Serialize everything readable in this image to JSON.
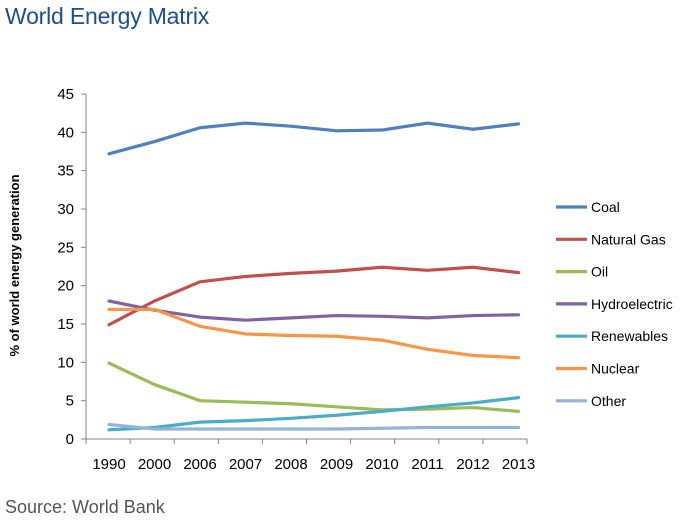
{
  "page": {
    "title": "World Energy Matrix",
    "source": "Source: World Bank"
  },
  "chart_data": {
    "type": "line",
    "title": "World Energy Matrix",
    "xlabel": "",
    "ylabel": "% of world energy generation",
    "ylim": [
      0,
      45
    ],
    "yticks": [
      0,
      5,
      10,
      15,
      20,
      25,
      30,
      35,
      40,
      45
    ],
    "grid": false,
    "legend_position": "right",
    "categories": [
      "1990",
      "2000",
      "2006",
      "2007",
      "2008",
      "2009",
      "2010",
      "2011",
      "2012",
      "2013"
    ],
    "series": [
      {
        "name": "Coal",
        "color": "#4f81bd",
        "values": [
          37.2,
          38.8,
          40.6,
          41.2,
          40.8,
          40.2,
          40.3,
          41.2,
          40.4,
          41.1
        ]
      },
      {
        "name": "Natural Gas",
        "color": "#c0504d",
        "values": [
          14.9,
          18.0,
          20.5,
          21.2,
          21.6,
          21.9,
          22.4,
          22.0,
          22.4,
          21.7
        ]
      },
      {
        "name": "Oil",
        "color": "#9bbb59",
        "values": [
          9.9,
          7.1,
          5.0,
          4.8,
          4.6,
          4.2,
          3.8,
          3.9,
          4.1,
          3.6
        ]
      },
      {
        "name": "Hydroelectric",
        "color": "#8064a2",
        "values": [
          18.0,
          16.8,
          15.9,
          15.5,
          15.8,
          16.1,
          16.0,
          15.8,
          16.1,
          16.2
        ]
      },
      {
        "name": "Renewables",
        "color": "#4bacc6",
        "values": [
          1.2,
          1.5,
          2.2,
          2.4,
          2.7,
          3.1,
          3.6,
          4.2,
          4.7,
          5.4
        ]
      },
      {
        "name": "Nuclear",
        "color": "#f79646",
        "values": [
          16.9,
          16.9,
          14.7,
          13.7,
          13.5,
          13.4,
          12.9,
          11.7,
          10.9,
          10.6
        ]
      },
      {
        "name": "Other",
        "color": "#95b3d7",
        "values": [
          1.9,
          1.3,
          1.3,
          1.3,
          1.3,
          1.3,
          1.4,
          1.5,
          1.5,
          1.5
        ]
      }
    ]
  }
}
